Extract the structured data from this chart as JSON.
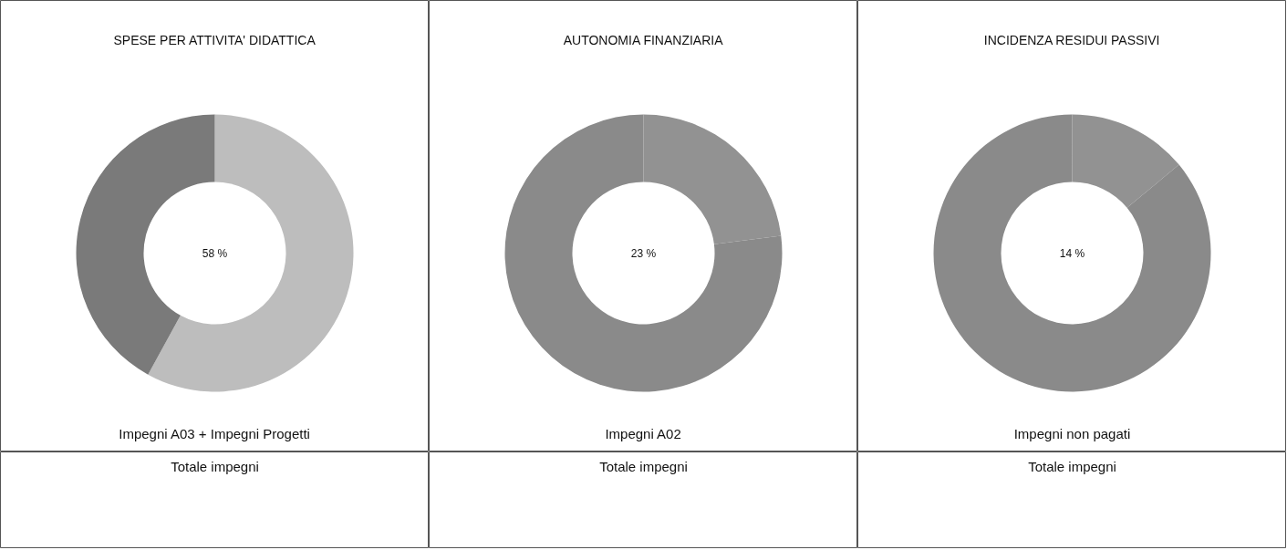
{
  "chart_data": [
    {
      "type": "donut",
      "title": "SPESE PER ATTIVITA' DIDATTICA",
      "categories": [
        null,
        null
      ],
      "values": [
        58,
        42
      ],
      "colors": [
        "#bdbdbd",
        "#7a7a7a"
      ],
      "annotations": [
        "58 %",
        "Impegni A03 + Impegni Progetti",
        "Totale impegni"
      ]
    },
    {
      "type": "donut",
      "title": "AUTONOMIA FINANZIARIA",
      "categories": [
        null,
        null
      ],
      "values": [
        23,
        77
      ],
      "colors": [
        "#929292",
        "#8a8a8a"
      ],
      "annotations": [
        "23 %",
        "Impegni A02",
        "Totale impegni"
      ]
    },
    {
      "type": "donut",
      "title": "INCIDENZA RESIDUI PASSIVI",
      "categories": [
        null,
        null
      ],
      "values": [
        14,
        86
      ],
      "colors": [
        "#929292",
        "#8a8a8a"
      ],
      "annotations": [
        "14 %",
        "Impegni non pagati",
        "Totale impegni"
      ]
    }
  ]
}
